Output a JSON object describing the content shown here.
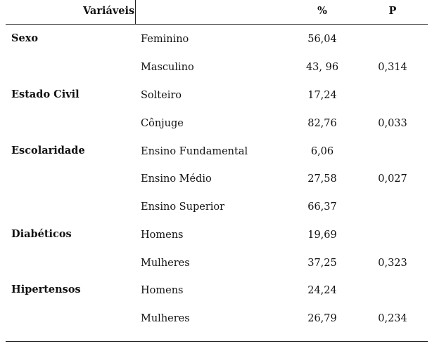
{
  "header": {
    "variable": "Variáveis",
    "percent": "%",
    "p": "P"
  },
  "groups": [
    {
      "category": "Sexo",
      "rows": [
        {
          "label": "Feminino",
          "percent": "56,04",
          "p": ""
        },
        {
          "label": "Masculino",
          "percent": "43, 96",
          "p": "0,314"
        }
      ]
    },
    {
      "category": "Estado Civil",
      "rows": [
        {
          "label": "Solteiro",
          "percent": "17,24",
          "p": ""
        },
        {
          "label": "Cônjuge",
          "percent": "82,76",
          "p": "0,033"
        }
      ]
    },
    {
      "category": "Escolaridade",
      "rows": [
        {
          "label": "Ensino Fundamental",
          "percent": "6,06",
          "p": ""
        },
        {
          "label": "Ensino Médio",
          "percent": "27,58",
          "p": "0,027"
        },
        {
          "label": "Ensino Superior",
          "percent": "66,37",
          "p": ""
        }
      ]
    },
    {
      "category": "Diabéticos",
      "rows": [
        {
          "label": "Homens",
          "percent": "19,69",
          "p": ""
        },
        {
          "label": "Mulheres",
          "percent": "37,25",
          "p": "0,323"
        }
      ]
    },
    {
      "category": "Hipertensos",
      "rows": [
        {
          "label": "Homens",
          "percent": "24,24",
          "p": ""
        },
        {
          "label": "Mulheres",
          "percent": "26,79",
          "p": "0,234"
        }
      ]
    }
  ]
}
